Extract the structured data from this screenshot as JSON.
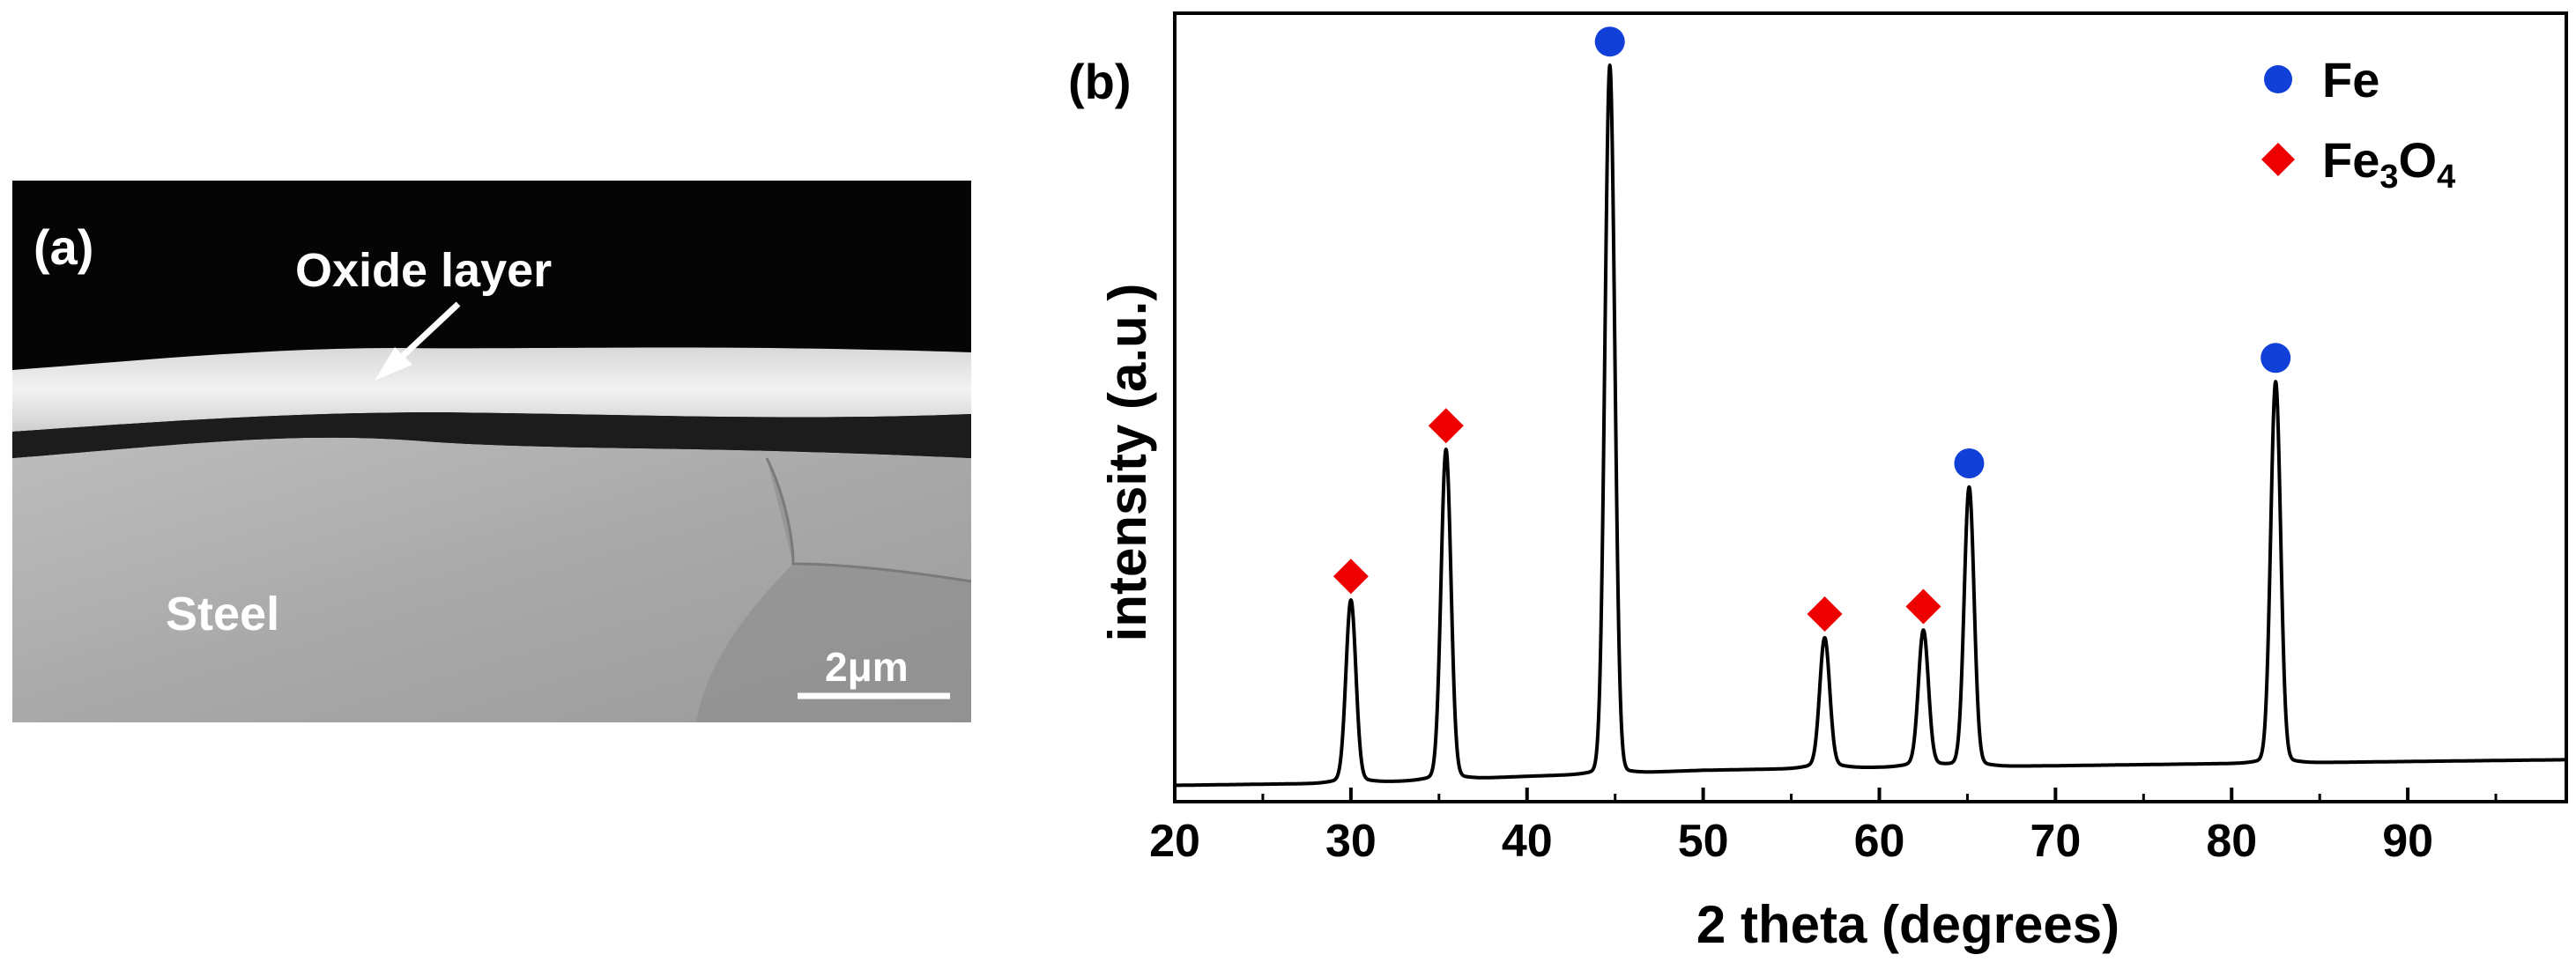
{
  "panel_a": {
    "label": "(a)",
    "oxide_label": "Oxide layer",
    "steel_label": "Steel",
    "scale_bar_label": "2μm"
  },
  "panel_b": {
    "label": "(b)"
  },
  "colors": {
    "fe_marker": "#1040d8",
    "fe3o4_marker": "#ee0000",
    "line": "#000000"
  },
  "chart_data": {
    "type": "line",
    "title": "",
    "xlabel": "2 theta (degrees)",
    "ylabel": "intensity (a.u.)",
    "xlim": [
      20,
      99
    ],
    "x_ticks": [
      20,
      30,
      40,
      50,
      60,
      70,
      80,
      90
    ],
    "y_ticks_shown": false,
    "legend": {
      "position": "top-right",
      "entries": [
        {
          "label": "Fe",
          "marker": "circle"
        },
        {
          "label": "Fe",
          "sub": "3",
          "label2": "O",
          "sub2": "4",
          "marker": "diamond"
        }
      ]
    },
    "baseline": {
      "x": [
        20,
        30,
        40,
        50,
        60,
        70,
        80,
        99
      ],
      "y": [
        1.0,
        1.3,
        2.2,
        3.0,
        3.4,
        3.6,
        3.9,
        4.4
      ]
    },
    "peaks": [
      {
        "x": 30.0,
        "height": 25,
        "phase": "Fe3O4"
      },
      {
        "x": 35.4,
        "height": 45,
        "phase": "Fe3O4"
      },
      {
        "x": 44.7,
        "height": 96,
        "phase": "Fe"
      },
      {
        "x": 56.9,
        "height": 20,
        "phase": "Fe3O4"
      },
      {
        "x": 62.5,
        "height": 21,
        "phase": "Fe3O4"
      },
      {
        "x": 65.1,
        "height": 40,
        "phase": "Fe"
      },
      {
        "x": 82.5,
        "height": 54,
        "phase": "Fe"
      }
    ]
  }
}
